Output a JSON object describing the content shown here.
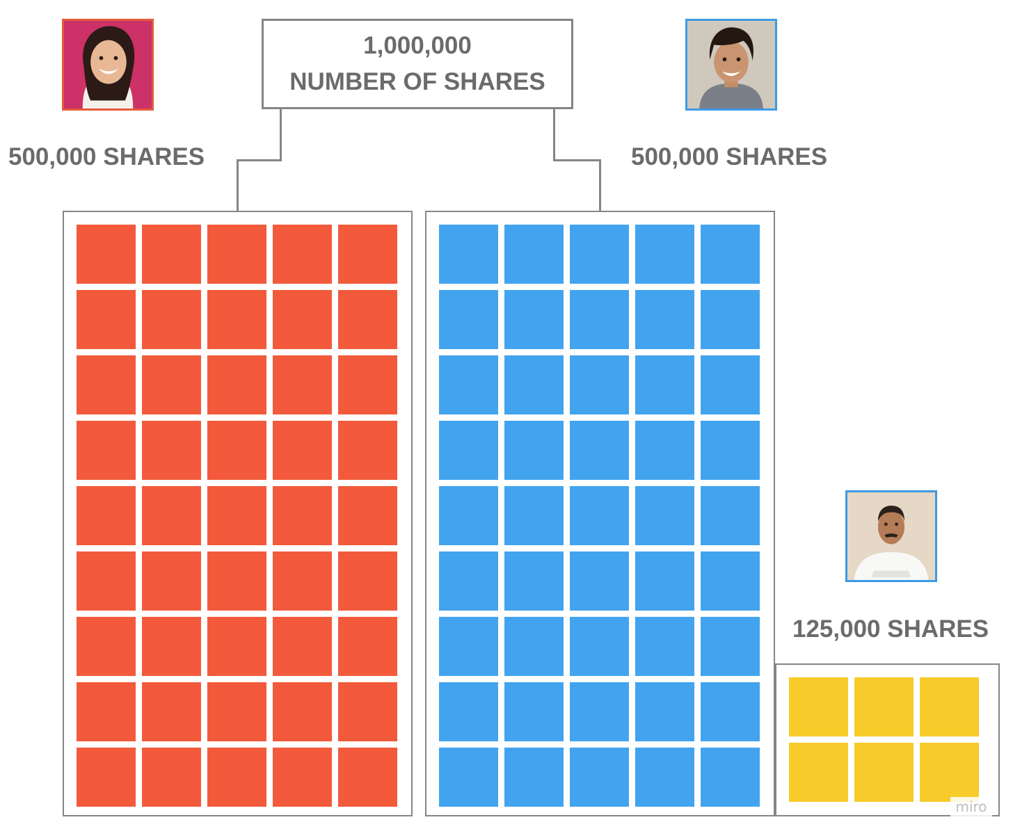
{
  "total": {
    "value": "1,000,000",
    "label": "NUMBER OF SHARES"
  },
  "groups": [
    {
      "id": "left",
      "label": "500,000 SHARES",
      "color": "#f25a3b",
      "rows": 9,
      "cols": 5
    },
    {
      "id": "middle",
      "label": "500,000 SHARES",
      "color": "#42a4ee",
      "rows": 9,
      "cols": 5
    },
    {
      "id": "right",
      "label": "125,000 SHARES",
      "color": "#f7cc2a",
      "rows": 2,
      "cols": 3
    }
  ],
  "avatars": [
    {
      "id": "left",
      "border": "#e45a3c",
      "icon": "woman-portrait"
    },
    {
      "id": "middle",
      "border": "#3d9ae5",
      "icon": "man-portrait"
    },
    {
      "id": "right",
      "border": "#3d9ae5",
      "icon": "man-portrait"
    }
  ],
  "watermark": "miro"
}
